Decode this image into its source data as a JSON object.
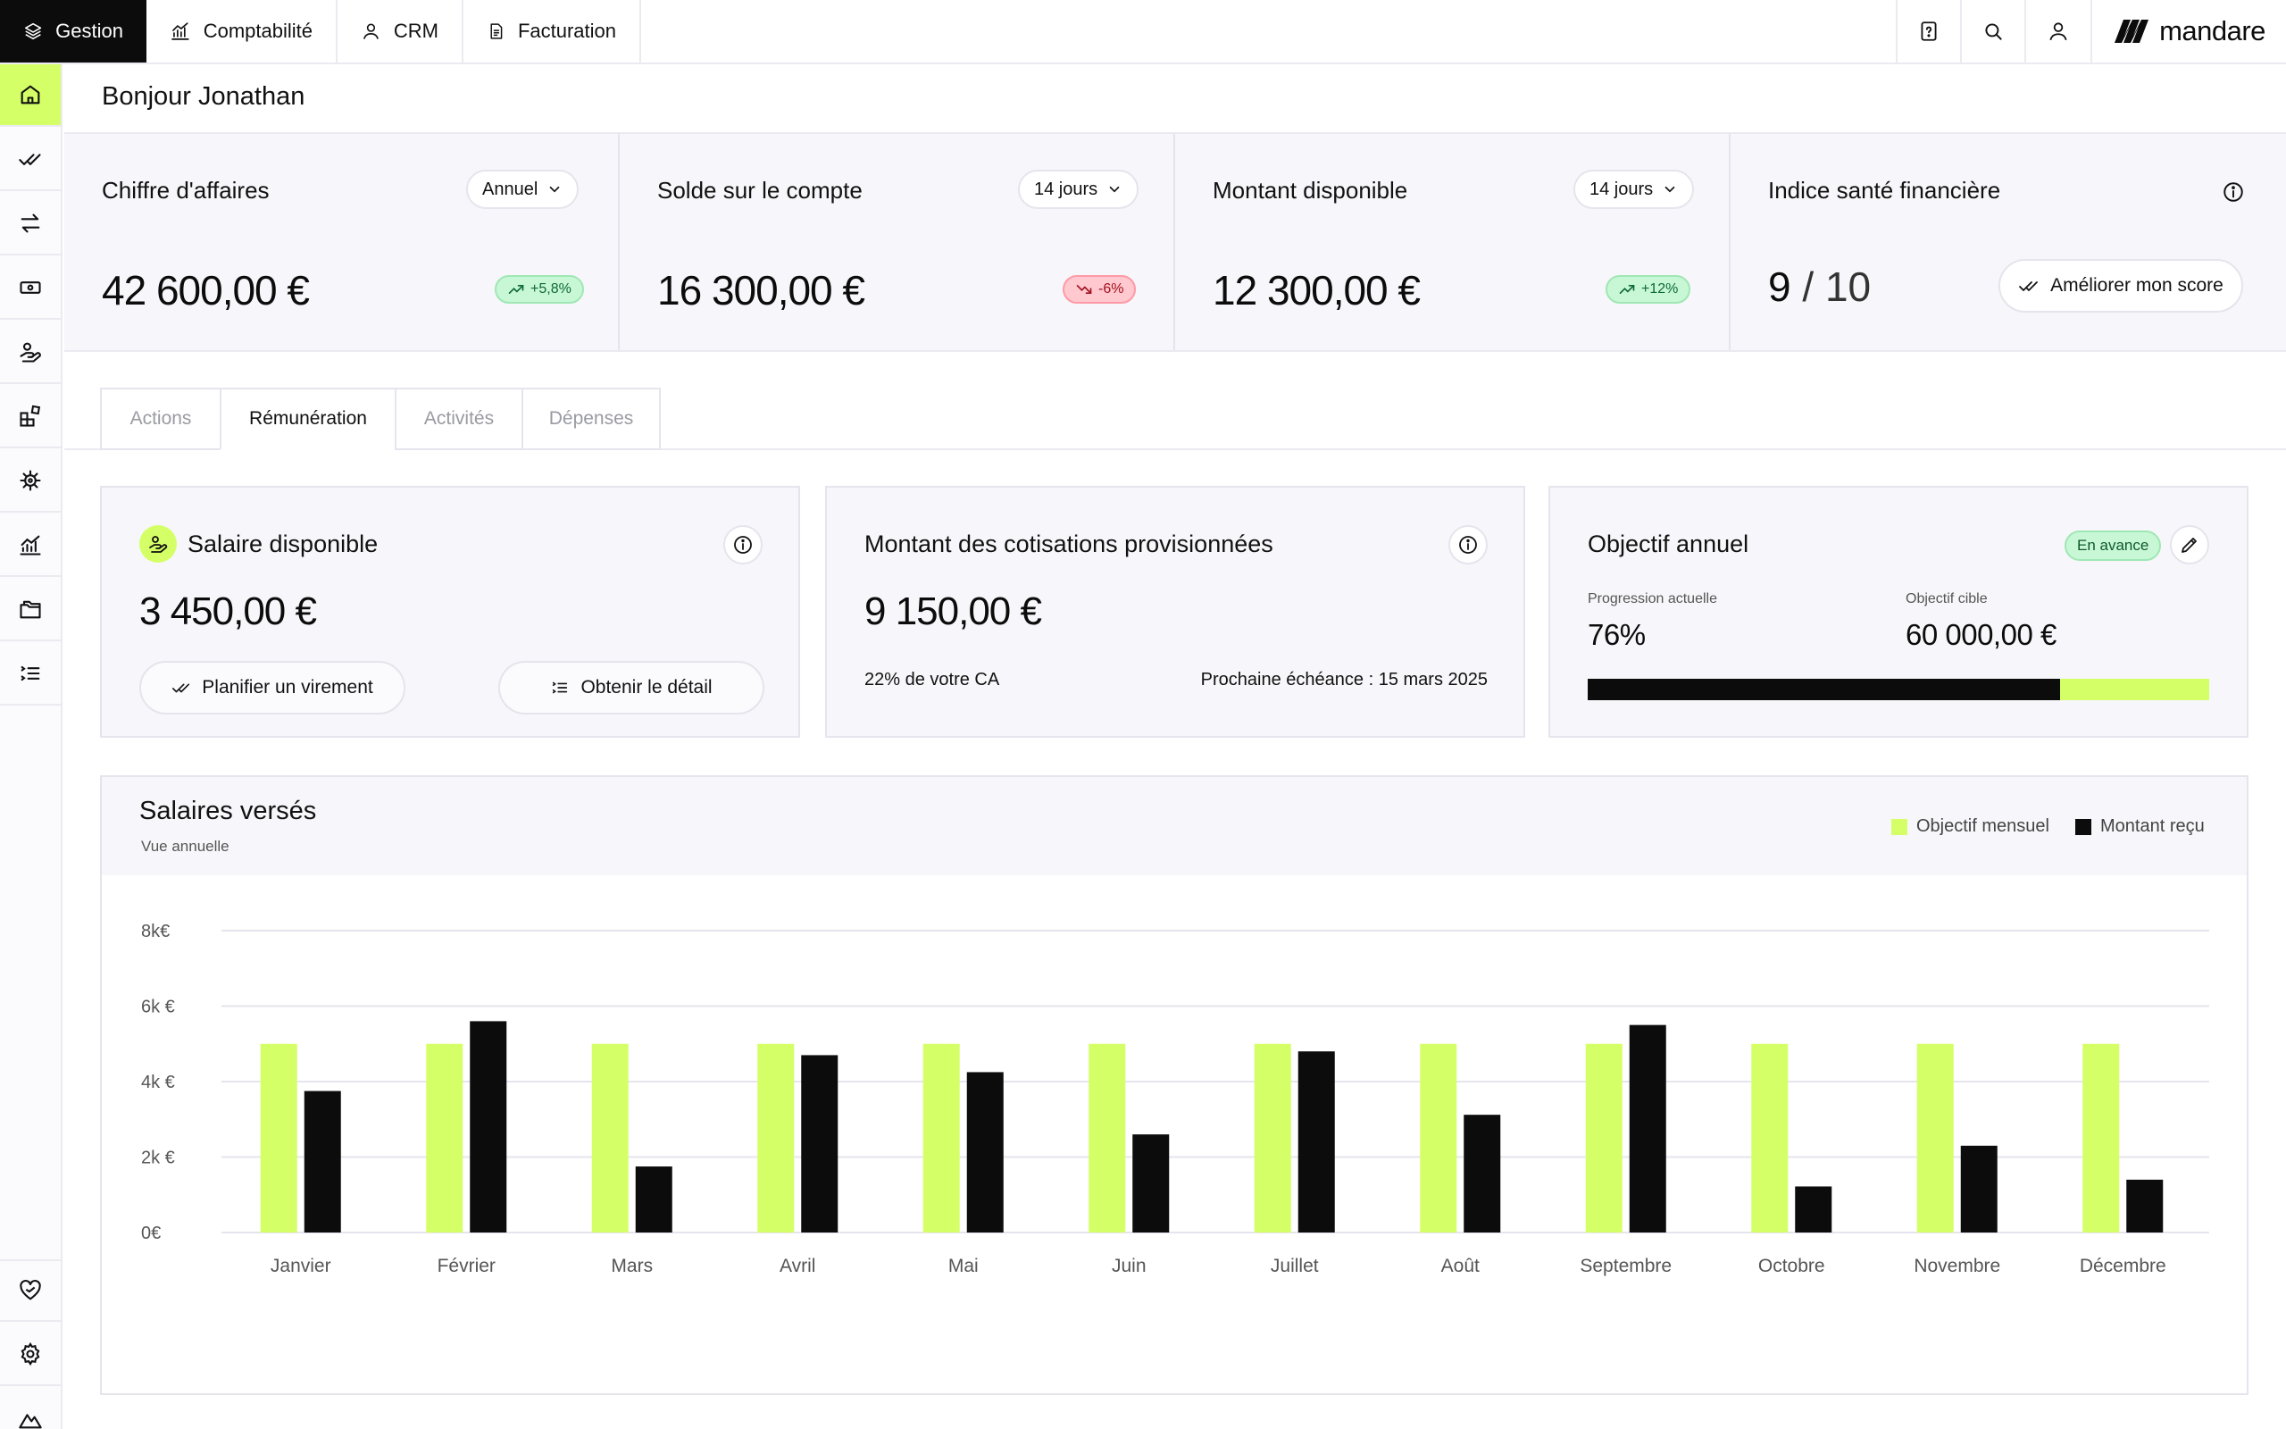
{
  "topnav": {
    "tabs": [
      {
        "label": "Gestion",
        "icon": "layers-icon"
      },
      {
        "label": "Comptabilité",
        "icon": "chart-icon"
      },
      {
        "label": "CRM",
        "icon": "user-icon"
      },
      {
        "label": "Facturation",
        "icon": "document-icon"
      }
    ],
    "icons": [
      "help-file-icon",
      "search-icon",
      "user-icon"
    ],
    "brand": "mandare"
  },
  "sidebar": {
    "items": [
      "home-icon",
      "double-check-icon",
      "transfer-icon",
      "banknote-icon",
      "hand-coin-icon",
      "widgets-icon",
      "settings-wheel-icon",
      "trend-chart-icon",
      "folders-icon",
      "list-icon"
    ],
    "bottom_items": [
      "heart-hand-icon",
      "gear-icon",
      "mountain-icon"
    ]
  },
  "greeting": "Bonjour Jonathan",
  "kpis": {
    "revenue": {
      "title": "Chiffre d'affaires",
      "period": "Annuel",
      "value": "42 600,00 €",
      "badge": "+5,8%"
    },
    "balance": {
      "title": "Solde sur le compte",
      "period": "14 jours",
      "value": "16 300,00 €",
      "badge": "-6%"
    },
    "available": {
      "title": "Montant disponible",
      "period": "14 jours",
      "value": "12 300,00 €",
      "badge": "+12%"
    },
    "health": {
      "title": "Indice santé financière",
      "score": "9",
      "max": "10",
      "button": "Améliorer mon score"
    }
  },
  "tabs": [
    {
      "label": "Actions",
      "active": false
    },
    {
      "label": "Rémunération",
      "active": true
    },
    {
      "label": "Activités",
      "active": false
    },
    {
      "label": "Dépenses",
      "active": false
    }
  ],
  "salary_card": {
    "title": "Salaire disponible",
    "value": "3 450,00 €",
    "schedule_button": "Planifier un virement",
    "detail_button": "Obtenir le détail"
  },
  "contributions_card": {
    "title": "Montant des cotisations provisionnées",
    "value": "9 150,00 €",
    "share": "22% de votre CA",
    "deadline": "Prochaine échéance : 15 mars 2025"
  },
  "goal_card": {
    "title": "Objectif annuel",
    "status": "En avance",
    "progress_label": "Progression actuelle",
    "progress_value": "76%",
    "progress": 0.76,
    "target_label": "Objectif cible",
    "target_value": "60 000,00 €"
  },
  "colors": {
    "accent": "#d5ff66",
    "dark": "#0c0c0c",
    "positive": "#c8f7d6",
    "negative": "#ffc9cf"
  },
  "chart_data": {
    "type": "bar",
    "title": "Salaires versés",
    "subtitle": "Vue annuelle",
    "categories": [
      "Janvier",
      "Février",
      "Mars",
      "Avril",
      "Mai",
      "Juin",
      "Juillet",
      "Août",
      "Septembre",
      "Octobre",
      "Novembre",
      "Décembre"
    ],
    "series": [
      {
        "name": "Objectif mensuel",
        "color": "#d5ff66",
        "values": [
          5000,
          5000,
          5000,
          5000,
          5000,
          5000,
          5000,
          5000,
          5000,
          5000,
          5000,
          5000
        ]
      },
      {
        "name": "Montant reçu",
        "color": "#0c0c0c",
        "values": [
          3750,
          5600,
          1750,
          4700,
          4250,
          2600,
          4800,
          3120,
          5500,
          1220,
          2300,
          1400
        ]
      }
    ],
    "y_ticks": [
      {
        "value": 0,
        "label": "0€"
      },
      {
        "value": 2000,
        "label": "2k €"
      },
      {
        "value": 4000,
        "label": "4k €"
      },
      {
        "value": 6000,
        "label": "6k €"
      },
      {
        "value": 8000,
        "label": "8k€"
      }
    ],
    "ylim": [
      0,
      8000
    ],
    "grid": true,
    "legend": "top-right"
  }
}
